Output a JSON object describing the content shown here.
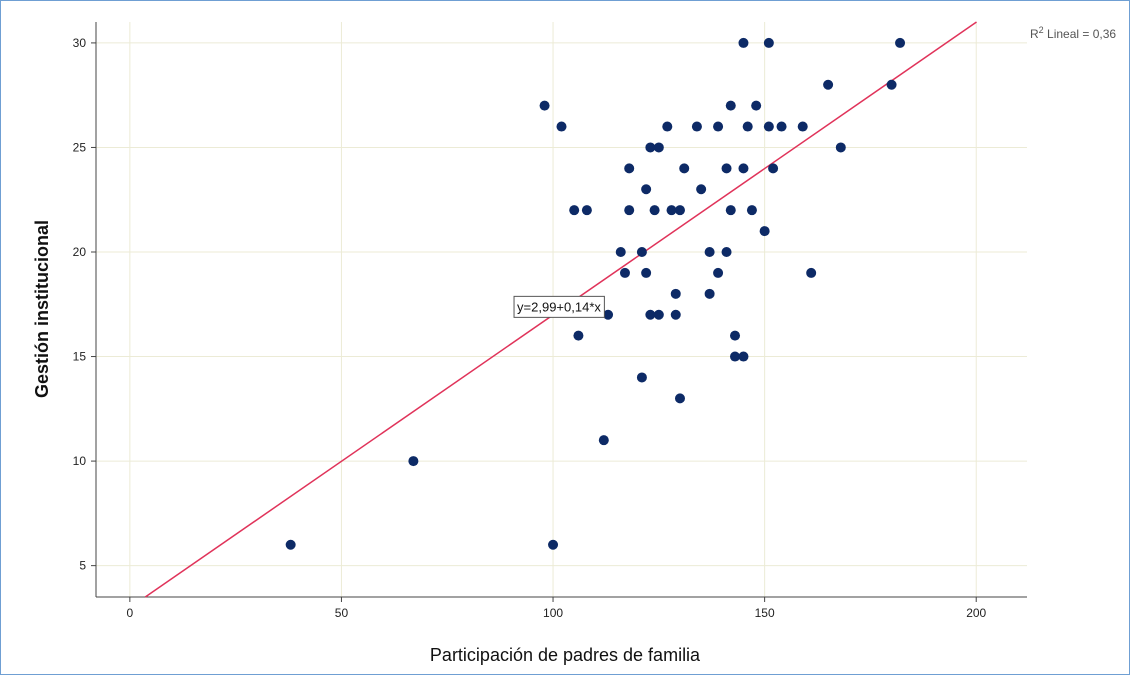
{
  "chart_data": {
    "type": "scatter",
    "xlabel": "Participación de padres de familia",
    "ylabel": "Gestión institucional",
    "xlim": [
      -8,
      212
    ],
    "ylim": [
      3.5,
      31
    ],
    "x_ticks": [
      "0",
      "50",
      "100",
      "150",
      "200"
    ],
    "y_ticks": [
      "5",
      "10",
      "15",
      "20",
      "25",
      "30"
    ],
    "grid": true,
    "fit_line": {
      "intercept": 2.99,
      "slope": 0.14,
      "equation_label": "y=2,99+0,14*x",
      "label_x": 100,
      "label_y": 17.4
    },
    "r2_label": {
      "prefix": "R",
      "sup": "2",
      "suffix": " Lineal = 0,36"
    },
    "point_color": "#0d2a66",
    "line_color": "#e0335a",
    "points": [
      [
        38,
        6
      ],
      [
        67,
        10
      ],
      [
        100,
        6
      ],
      [
        98,
        27
      ],
      [
        102,
        26
      ],
      [
        105,
        22
      ],
      [
        106,
        16
      ],
      [
        108,
        22
      ],
      [
        112,
        11
      ],
      [
        113,
        17
      ],
      [
        116,
        20
      ],
      [
        117,
        19
      ],
      [
        118,
        24
      ],
      [
        118,
        22
      ],
      [
        121,
        14
      ],
      [
        121,
        20
      ],
      [
        122,
        23
      ],
      [
        122,
        19
      ],
      [
        123,
        25
      ],
      [
        123,
        17
      ],
      [
        124,
        22
      ],
      [
        125,
        25
      ],
      [
        125,
        17
      ],
      [
        127,
        26
      ],
      [
        128,
        22
      ],
      [
        129,
        18
      ],
      [
        129,
        17
      ],
      [
        130,
        13
      ],
      [
        130,
        22
      ],
      [
        131,
        24
      ],
      [
        134,
        26
      ],
      [
        135,
        23
      ],
      [
        137,
        20
      ],
      [
        137,
        18
      ],
      [
        139,
        26
      ],
      [
        139,
        19
      ],
      [
        141,
        24
      ],
      [
        141,
        20
      ],
      [
        142,
        27
      ],
      [
        142,
        22
      ],
      [
        143,
        16
      ],
      [
        143,
        15
      ],
      [
        145,
        30
      ],
      [
        145,
        24
      ],
      [
        145,
        15
      ],
      [
        146,
        26
      ],
      [
        147,
        22
      ],
      [
        148,
        27
      ],
      [
        150,
        21
      ],
      [
        151,
        30
      ],
      [
        151,
        26
      ],
      [
        152,
        24
      ],
      [
        154,
        26
      ],
      [
        159,
        26
      ],
      [
        161,
        19
      ],
      [
        165,
        28
      ],
      [
        168,
        25
      ],
      [
        180,
        28
      ],
      [
        182,
        30
      ]
    ]
  }
}
